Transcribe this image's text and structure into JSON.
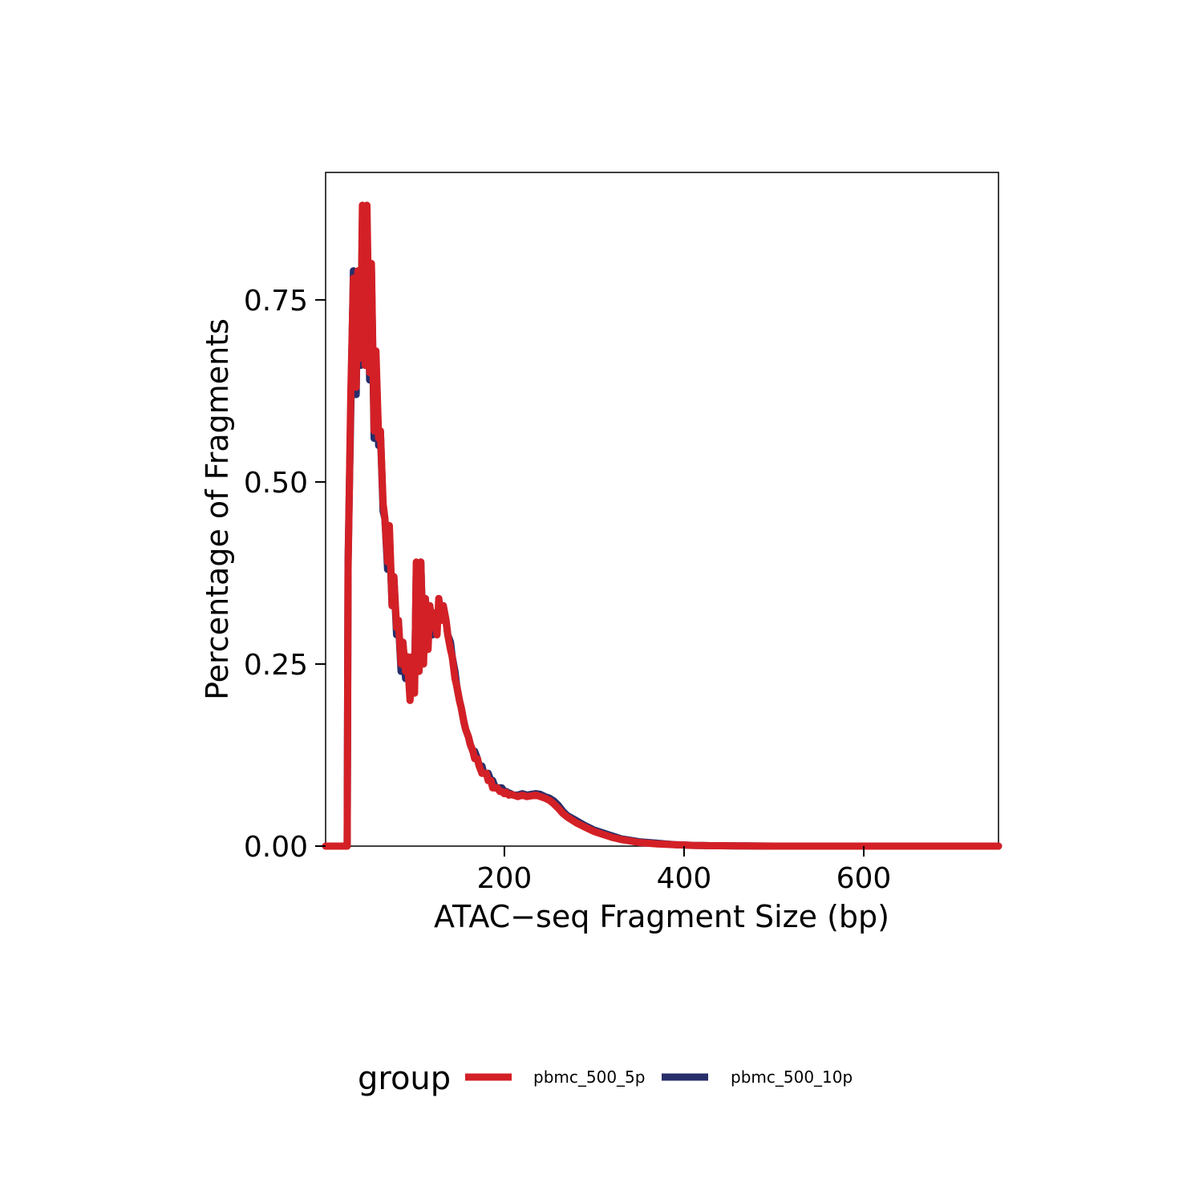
{
  "chart_data": {
    "type": "line",
    "title": "",
    "xlabel": "ATAC−seq Fragment Size (bp)",
    "ylabel": "Percentage of Fragments",
    "xlim": [
      1,
      750
    ],
    "ylim": [
      0,
      0.925
    ],
    "x_ticks": [
      200,
      400,
      600
    ],
    "x_tick_labels": [
      "200",
      "400",
      "600"
    ],
    "y_ticks": [
      0,
      0.25,
      0.5,
      0.75
    ],
    "y_tick_labels": [
      "0.00",
      "0.25",
      "0.50",
      "0.75"
    ],
    "grid": false,
    "legend": {
      "title": "group",
      "position": "bottom",
      "entries": [
        {
          "label": "pbmc_500_5p",
          "color": "#d32026"
        },
        {
          "label": "pbmc_500_10p",
          "color": "#272e6a"
        }
      ]
    },
    "series": [
      {
        "name": "pbmc_500_10p",
        "color": "#272e6a",
        "x": [
          1,
          25,
          26,
          29,
          32,
          35,
          37,
          40,
          42,
          45,
          47,
          50,
          52,
          55,
          57,
          60,
          62,
          65,
          67,
          70,
          72,
          75,
          77,
          80,
          82,
          85,
          87,
          90,
          92,
          95,
          97,
          100,
          102,
          105,
          107,
          110,
          112,
          115,
          117,
          120,
          122,
          125,
          127,
          130,
          132,
          135,
          137,
          140,
          142,
          145,
          147,
          150,
          152,
          155,
          157,
          160,
          162,
          165,
          167,
          170,
          172,
          175,
          177,
          180,
          182,
          185,
          187,
          190,
          192,
          195,
          197,
          200,
          202,
          205,
          207,
          210,
          215,
          220,
          225,
          230,
          235,
          240,
          245,
          250,
          255,
          260,
          265,
          270,
          280,
          290,
          300,
          310,
          320,
          330,
          340,
          350,
          360,
          370,
          380,
          390,
          400,
          410,
          420,
          430,
          440,
          450,
          460,
          470,
          480,
          500,
          520,
          540,
          560,
          580,
          600,
          620,
          650,
          700,
          750
        ],
        "y": [
          0,
          0,
          0.39,
          0.6,
          0.79,
          0.62,
          0.78,
          0.66,
          0.86,
          0.67,
          0.86,
          0.64,
          0.79,
          0.56,
          0.67,
          0.55,
          0.57,
          0.46,
          0.45,
          0.38,
          0.43,
          0.33,
          0.37,
          0.29,
          0.31,
          0.24,
          0.28,
          0.23,
          0.26,
          0.21,
          0.25,
          0.22,
          0.38,
          0.24,
          0.39,
          0.26,
          0.34,
          0.28,
          0.33,
          0.29,
          0.32,
          0.3,
          0.33,
          0.32,
          0.33,
          0.31,
          0.29,
          0.28,
          0.26,
          0.24,
          0.22,
          0.2,
          0.19,
          0.17,
          0.16,
          0.15,
          0.14,
          0.13,
          0.13,
          0.12,
          0.11,
          0.11,
          0.1,
          0.1,
          0.1,
          0.09,
          0.09,
          0.08,
          0.08,
          0.08,
          0.08,
          0.075,
          0.075,
          0.073,
          0.072,
          0.07,
          0.07,
          0.072,
          0.07,
          0.071,
          0.072,
          0.071,
          0.068,
          0.066,
          0.062,
          0.056,
          0.048,
          0.042,
          0.035,
          0.028,
          0.022,
          0.018,
          0.014,
          0.01,
          0.008,
          0.006,
          0.005,
          0.004,
          0.003,
          0.002,
          0.0015,
          0.001,
          0.0008,
          0.0006,
          0.0005,
          0.0004,
          0.0003,
          0.0002,
          0.0001,
          0,
          0,
          0,
          0,
          0,
          0,
          0,
          0,
          0,
          0
        ]
      },
      {
        "name": "pbmc_500_5p",
        "color": "#d32026",
        "x": [
          1,
          25,
          26,
          29,
          32,
          35,
          37,
          40,
          42,
          45,
          47,
          50,
          52,
          55,
          57,
          60,
          62,
          65,
          67,
          70,
          72,
          75,
          77,
          80,
          82,
          85,
          87,
          90,
          92,
          95,
          97,
          100,
          102,
          105,
          107,
          110,
          112,
          115,
          117,
          120,
          122,
          125,
          127,
          130,
          132,
          135,
          137,
          140,
          142,
          145,
          147,
          150,
          152,
          155,
          157,
          160,
          162,
          165,
          167,
          170,
          172,
          175,
          177,
          180,
          182,
          185,
          187,
          190,
          192,
          195,
          197,
          200,
          202,
          205,
          207,
          210,
          215,
          220,
          225,
          230,
          235,
          240,
          245,
          250,
          255,
          260,
          265,
          270,
          280,
          290,
          300,
          310,
          320,
          330,
          340,
          350,
          360,
          370,
          380,
          390,
          400,
          410,
          420,
          430,
          440,
          450,
          460,
          470,
          480,
          500,
          520,
          540,
          560,
          580,
          600,
          620,
          650,
          700,
          750
        ],
        "y": [
          0,
          0,
          0.38,
          0.62,
          0.78,
          0.63,
          0.79,
          0.67,
          0.88,
          0.66,
          0.88,
          0.65,
          0.8,
          0.57,
          0.68,
          0.56,
          0.57,
          0.47,
          0.45,
          0.39,
          0.44,
          0.33,
          0.37,
          0.3,
          0.31,
          0.25,
          0.28,
          0.24,
          0.26,
          0.2,
          0.26,
          0.21,
          0.39,
          0.24,
          0.39,
          0.25,
          0.34,
          0.27,
          0.33,
          0.3,
          0.32,
          0.29,
          0.34,
          0.31,
          0.33,
          0.31,
          0.29,
          0.27,
          0.26,
          0.23,
          0.22,
          0.2,
          0.19,
          0.17,
          0.16,
          0.15,
          0.14,
          0.13,
          0.12,
          0.12,
          0.11,
          0.1,
          0.1,
          0.1,
          0.09,
          0.09,
          0.08,
          0.08,
          0.08,
          0.075,
          0.075,
          0.072,
          0.074,
          0.07,
          0.071,
          0.07,
          0.068,
          0.07,
          0.068,
          0.069,
          0.07,
          0.068,
          0.066,
          0.063,
          0.058,
          0.052,
          0.045,
          0.04,
          0.032,
          0.026,
          0.02,
          0.016,
          0.012,
          0.009,
          0.007,
          0.005,
          0.004,
          0.003,
          0.0025,
          0.002,
          0.0015,
          0.001,
          0.0008,
          0.0006,
          0.0005,
          0.0004,
          0.0003,
          0.0002,
          0.0001,
          0,
          0,
          0,
          0,
          0,
          0,
          0,
          0,
          0,
          0
        ]
      }
    ]
  }
}
